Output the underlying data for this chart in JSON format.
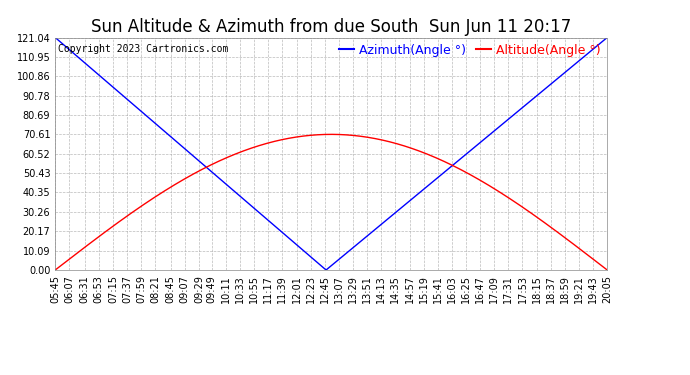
{
  "title": "Sun Altitude & Azimuth from due South  Sun Jun 11 20:17",
  "copyright": "Copyright 2023 Cartronics.com",
  "legend_azimuth": "Azimuth(Angle °)",
  "legend_altitude": "Altitude(Angle °)",
  "azimuth_color": "#0000ff",
  "altitude_color": "#ff0000",
  "yticks": [
    0.0,
    10.09,
    20.17,
    30.26,
    40.35,
    50.43,
    60.52,
    70.61,
    80.69,
    90.78,
    100.86,
    110.95,
    121.04
  ],
  "ymin": 0.0,
  "ymax": 121.04,
  "solar_noon_minutes": 767,
  "xtick_labels": [
    "05:45",
    "06:07",
    "06:31",
    "06:53",
    "07:15",
    "07:37",
    "07:59",
    "08:21",
    "08:45",
    "09:07",
    "09:29",
    "09:49",
    "10:11",
    "10:33",
    "10:55",
    "11:17",
    "11:39",
    "12:01",
    "12:23",
    "12:45",
    "13:07",
    "13:29",
    "13:51",
    "14:13",
    "14:35",
    "14:57",
    "15:19",
    "15:41",
    "16:03",
    "16:25",
    "16:47",
    "17:09",
    "17:31",
    "17:53",
    "18:15",
    "18:37",
    "18:59",
    "19:21",
    "19:43",
    "20:05"
  ],
  "background_color": "#ffffff",
  "grid_color": "#aaaaaa",
  "title_fontsize": 12,
  "tick_fontsize": 7,
  "legend_fontsize": 9,
  "copyright_fontsize": 7,
  "linewidth": 1.0
}
